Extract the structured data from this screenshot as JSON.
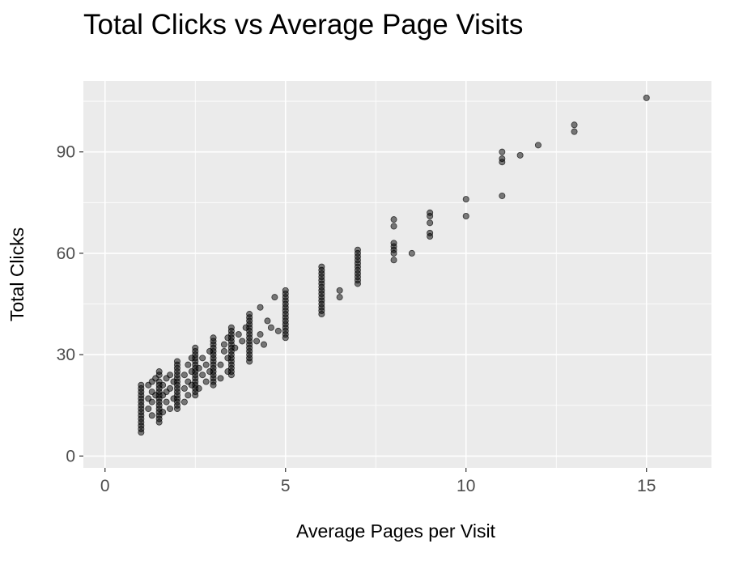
{
  "chart_data": {
    "type": "scatter",
    "title": "Total Clicks vs Average Page Visits",
    "xlabel": "Average Pages per Visit",
    "ylabel": "Total Clicks",
    "xlim": [
      -0.6,
      16.8
    ],
    "ylim": [
      -3.5,
      111
    ],
    "x_ticks": [
      0,
      5,
      10,
      15
    ],
    "y_ticks": [
      0,
      30,
      60,
      90
    ],
    "grid": true,
    "panel_color": "#ebebeb",
    "grid_color": "#ffffff",
    "point_color": "#000000",
    "point_opacity": 0.5,
    "points": [
      [
        1,
        7
      ],
      [
        1,
        8
      ],
      [
        1,
        9
      ],
      [
        1,
        10
      ],
      [
        1,
        11
      ],
      [
        1,
        12
      ],
      [
        1,
        13
      ],
      [
        1,
        14
      ],
      [
        1,
        15
      ],
      [
        1,
        16
      ],
      [
        1,
        17
      ],
      [
        1,
        18
      ],
      [
        1,
        19
      ],
      [
        1,
        20
      ],
      [
        1,
        21
      ],
      [
        1.2,
        14
      ],
      [
        1.2,
        17
      ],
      [
        1.2,
        21
      ],
      [
        1.3,
        12
      ],
      [
        1.3,
        16
      ],
      [
        1.3,
        19
      ],
      [
        1.3,
        22
      ],
      [
        1.4,
        18
      ],
      [
        1.4,
        23
      ],
      [
        1.5,
        10
      ],
      [
        1.5,
        11
      ],
      [
        1.5,
        12
      ],
      [
        1.5,
        13
      ],
      [
        1.5,
        14
      ],
      [
        1.5,
        15
      ],
      [
        1.5,
        16
      ],
      [
        1.5,
        17
      ],
      [
        1.5,
        18
      ],
      [
        1.5,
        19
      ],
      [
        1.5,
        20
      ],
      [
        1.5,
        21
      ],
      [
        1.5,
        22
      ],
      [
        1.5,
        24
      ],
      [
        1.5,
        25
      ],
      [
        1.6,
        13
      ],
      [
        1.6,
        18
      ],
      [
        1.6,
        21
      ],
      [
        1.7,
        16
      ],
      [
        1.7,
        19
      ],
      [
        1.7,
        23
      ],
      [
        1.8,
        14
      ],
      [
        1.8,
        20
      ],
      [
        1.8,
        24
      ],
      [
        1.9,
        17
      ],
      [
        1.9,
        22
      ],
      [
        2,
        14
      ],
      [
        2,
        15
      ],
      [
        2,
        16
      ],
      [
        2,
        17
      ],
      [
        2,
        18
      ],
      [
        2,
        19
      ],
      [
        2,
        20
      ],
      [
        2,
        21
      ],
      [
        2,
        22
      ],
      [
        2,
        23
      ],
      [
        2,
        24
      ],
      [
        2,
        25
      ],
      [
        2,
        26
      ],
      [
        2,
        27
      ],
      [
        2,
        28
      ],
      [
        2.2,
        16
      ],
      [
        2.2,
        20
      ],
      [
        2.2,
        24
      ],
      [
        2.3,
        18
      ],
      [
        2.3,
        22
      ],
      [
        2.3,
        27
      ],
      [
        2.4,
        21
      ],
      [
        2.4,
        25
      ],
      [
        2.4,
        29
      ],
      [
        2.5,
        18
      ],
      [
        2.5,
        19
      ],
      [
        2.5,
        20
      ],
      [
        2.5,
        21
      ],
      [
        2.5,
        22
      ],
      [
        2.5,
        23
      ],
      [
        2.5,
        24
      ],
      [
        2.5,
        25
      ],
      [
        2.5,
        26
      ],
      [
        2.5,
        27
      ],
      [
        2.5,
        28
      ],
      [
        2.5,
        29
      ],
      [
        2.5,
        30
      ],
      [
        2.5,
        31
      ],
      [
        2.5,
        32
      ],
      [
        2.6,
        20
      ],
      [
        2.6,
        26
      ],
      [
        2.7,
        24
      ],
      [
        2.7,
        29
      ],
      [
        2.8,
        22
      ],
      [
        2.8,
        27
      ],
      [
        2.9,
        25
      ],
      [
        2.9,
        31
      ],
      [
        3,
        21
      ],
      [
        3,
        22
      ],
      [
        3,
        23
      ],
      [
        3,
        24
      ],
      [
        3,
        25
      ],
      [
        3,
        26
      ],
      [
        3,
        27
      ],
      [
        3,
        28
      ],
      [
        3,
        29
      ],
      [
        3,
        30
      ],
      [
        3,
        31
      ],
      [
        3,
        32
      ],
      [
        3,
        33
      ],
      [
        3,
        34
      ],
      [
        3,
        35
      ],
      [
        3.2,
        23
      ],
      [
        3.2,
        27
      ],
      [
        3.3,
        31
      ],
      [
        3.3,
        33
      ],
      [
        3.4,
        25
      ],
      [
        3.4,
        29
      ],
      [
        3.4,
        35
      ],
      [
        3.5,
        24
      ],
      [
        3.5,
        25
      ],
      [
        3.5,
        26
      ],
      [
        3.5,
        27
      ],
      [
        3.5,
        28
      ],
      [
        3.5,
        29
      ],
      [
        3.5,
        30
      ],
      [
        3.5,
        31
      ],
      [
        3.5,
        32
      ],
      [
        3.5,
        33
      ],
      [
        3.5,
        34
      ],
      [
        3.5,
        35
      ],
      [
        3.5,
        36
      ],
      [
        3.5,
        37
      ],
      [
        3.5,
        38
      ],
      [
        3.6,
        32
      ],
      [
        3.7,
        36
      ],
      [
        3.8,
        34
      ],
      [
        3.9,
        38
      ],
      [
        4,
        28
      ],
      [
        4,
        29
      ],
      [
        4,
        30
      ],
      [
        4,
        31
      ],
      [
        4,
        32
      ],
      [
        4,
        33
      ],
      [
        4,
        34
      ],
      [
        4,
        35
      ],
      [
        4,
        36
      ],
      [
        4,
        37
      ],
      [
        4,
        38
      ],
      [
        4,
        39
      ],
      [
        4,
        40
      ],
      [
        4,
        41
      ],
      [
        4,
        42
      ],
      [
        4.2,
        34
      ],
      [
        4.3,
        44
      ],
      [
        4.3,
        36
      ],
      [
        4.4,
        33
      ],
      [
        4.5,
        40
      ],
      [
        4.6,
        38
      ],
      [
        4.7,
        47
      ],
      [
        4.8,
        37
      ],
      [
        5,
        35
      ],
      [
        5,
        36
      ],
      [
        5,
        37
      ],
      [
        5,
        38
      ],
      [
        5,
        39
      ],
      [
        5,
        40
      ],
      [
        5,
        41
      ],
      [
        5,
        42
      ],
      [
        5,
        43
      ],
      [
        5,
        44
      ],
      [
        5,
        45
      ],
      [
        5,
        46
      ],
      [
        5,
        47
      ],
      [
        5,
        48
      ],
      [
        5,
        49
      ],
      [
        6,
        42
      ],
      [
        6,
        43
      ],
      [
        6,
        44
      ],
      [
        6,
        45
      ],
      [
        6,
        46
      ],
      [
        6,
        47
      ],
      [
        6,
        48
      ],
      [
        6,
        49
      ],
      [
        6,
        50
      ],
      [
        6,
        51
      ],
      [
        6,
        52
      ],
      [
        6,
        53
      ],
      [
        6,
        54
      ],
      [
        6,
        55
      ],
      [
        6,
        56
      ],
      [
        6.5,
        47
      ],
      [
        6.5,
        49
      ],
      [
        7,
        51
      ],
      [
        7,
        52
      ],
      [
        7,
        53
      ],
      [
        7,
        54
      ],
      [
        7,
        55
      ],
      [
        7,
        56
      ],
      [
        7,
        57
      ],
      [
        7,
        58
      ],
      [
        7,
        59
      ],
      [
        7,
        60
      ],
      [
        7,
        61
      ],
      [
        8,
        58
      ],
      [
        8,
        60
      ],
      [
        8,
        61
      ],
      [
        8,
        62
      ],
      [
        8,
        63
      ],
      [
        8,
        68
      ],
      [
        8,
        70
      ],
      [
        8.5,
        60
      ],
      [
        9,
        65
      ],
      [
        9,
        66
      ],
      [
        9,
        69
      ],
      [
        9,
        71
      ],
      [
        9,
        72
      ],
      [
        10,
        71
      ],
      [
        10,
        76
      ],
      [
        11,
        77
      ],
      [
        11,
        87
      ],
      [
        11,
        88
      ],
      [
        11,
        90
      ],
      [
        11.5,
        89
      ],
      [
        12,
        92
      ],
      [
        13,
        96
      ],
      [
        13,
        98
      ],
      [
        15,
        106
      ]
    ]
  }
}
